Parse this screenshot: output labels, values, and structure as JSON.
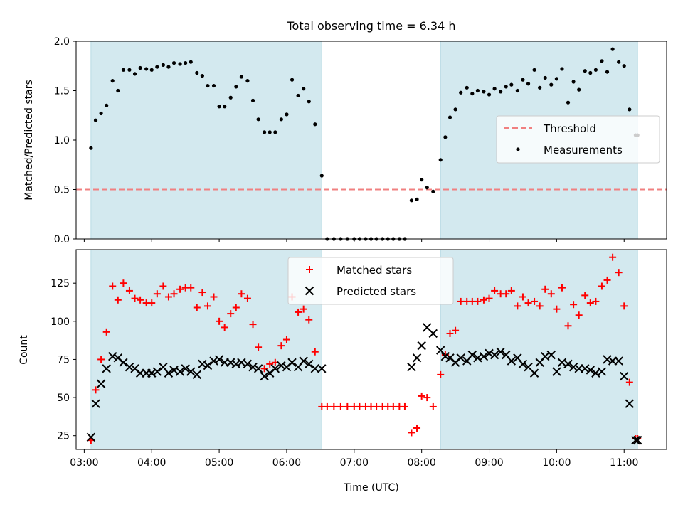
{
  "chart_data": [
    {
      "type": "scatter",
      "title": "Total observing time = 6.34 h",
      "ylabel": "Matched/Predicted stars",
      "xlabel": "",
      "xlim": [
        2.88,
        11.63
      ],
      "ylim": [
        0,
        2.0
      ],
      "yticks": [
        0.0,
        0.5,
        1.0,
        1.5,
        2.0
      ],
      "ytick_labels": [
        "0.0",
        "0.5",
        "1.0",
        "1.5",
        "2.0"
      ],
      "shaded_intervals": [
        [
          3.1,
          6.52
        ],
        [
          8.28,
          11.2
        ]
      ],
      "shade_color": "#d3e9ef",
      "threshold": {
        "name": "Threshold",
        "value": 0.5,
        "color": "#f08080",
        "style": "dashed"
      },
      "legend": {
        "placement": "center-right",
        "entries": [
          "Threshold",
          "Measurements"
        ]
      },
      "series": [
        {
          "name": "Measurements",
          "marker": "dot",
          "color": "#000000",
          "x": [
            3.1,
            3.17,
            3.25,
            3.33,
            3.42,
            3.5,
            3.58,
            3.67,
            3.75,
            3.83,
            3.92,
            4.0,
            4.08,
            4.17,
            4.25,
            4.33,
            4.42,
            4.5,
            4.58,
            4.67,
            4.75,
            4.83,
            4.92,
            5.0,
            5.08,
            5.17,
            5.25,
            5.33,
            5.42,
            5.5,
            5.58,
            5.67,
            5.75,
            5.83,
            5.92,
            6.0,
            6.08,
            6.17,
            6.25,
            6.33,
            6.42,
            6.52,
            6.6,
            6.7,
            6.8,
            6.9,
            7.0,
            7.08,
            7.17,
            7.25,
            7.33,
            7.42,
            7.5,
            7.58,
            7.67,
            7.75,
            7.85,
            7.93,
            8.0,
            8.08,
            8.17,
            8.28,
            8.35,
            8.42,
            8.5,
            8.58,
            8.67,
            8.75,
            8.83,
            8.92,
            9.0,
            9.08,
            9.17,
            9.25,
            9.33,
            9.42,
            9.5,
            9.58,
            9.67,
            9.75,
            9.83,
            9.92,
            10.0,
            10.08,
            10.17,
            10.25,
            10.33,
            10.42,
            10.5,
            10.58,
            10.67,
            10.75,
            10.83,
            10.92,
            11.0,
            11.08,
            11.17,
            11.2
          ],
          "y": [
            0.92,
            1.2,
            1.27,
            1.35,
            1.6,
            1.5,
            1.71,
            1.71,
            1.67,
            1.73,
            1.72,
            1.71,
            1.74,
            1.76,
            1.74,
            1.78,
            1.77,
            1.78,
            1.79,
            1.68,
            1.65,
            1.55,
            1.55,
            1.34,
            1.34,
            1.43,
            1.54,
            1.64,
            1.6,
            1.4,
            1.21,
            1.08,
            1.08,
            1.08,
            1.21,
            1.26,
            1.61,
            1.45,
            1.52,
            1.39,
            1.16,
            0.64,
            0.0,
            0.0,
            0.0,
            0.0,
            0.0,
            0.0,
            0.0,
            0.0,
            0.0,
            0.0,
            0.0,
            0.0,
            0.0,
            0.0,
            0.39,
            0.4,
            0.6,
            0.52,
            0.48,
            0.8,
            1.03,
            1.23,
            1.31,
            1.48,
            1.53,
            1.47,
            1.5,
            1.49,
            1.46,
            1.52,
            1.49,
            1.54,
            1.56,
            1.5,
            1.61,
            1.57,
            1.71,
            1.53,
            1.63,
            1.56,
            1.62,
            1.72,
            1.38,
            1.59,
            1.51,
            1.7,
            1.68,
            1.71,
            1.8,
            1.69,
            1.92,
            1.79,
            1.75,
            1.31,
            1.05,
            1.05
          ]
        }
      ]
    },
    {
      "type": "scatter",
      "title": "",
      "ylabel": "Count",
      "xlabel": "Time (UTC)",
      "xlim": [
        2.88,
        11.63
      ],
      "ylim": [
        16,
        147
      ],
      "yticks": [
        25,
        50,
        75,
        100,
        125
      ],
      "ytick_labels": [
        "25",
        "50",
        "75",
        "100",
        "125"
      ],
      "xticks": [
        3,
        4,
        5,
        6,
        7,
        8,
        9,
        10,
        11
      ],
      "xtick_labels": [
        "03:00",
        "04:00",
        "05:00",
        "06:00",
        "07:00",
        "08:00",
        "09:00",
        "10:00",
        "11:00"
      ],
      "shaded_intervals": [
        [
          3.1,
          6.52
        ],
        [
          8.28,
          11.2
        ]
      ],
      "shade_color": "#d3e9ef",
      "legend": {
        "placement": "top-center",
        "entries": [
          "Matched stars",
          "Predicted stars"
        ]
      },
      "series": [
        {
          "name": "Matched stars",
          "marker": "plus",
          "color": "#ff0000",
          "x": [
            3.1,
            3.17,
            3.25,
            3.33,
            3.42,
            3.5,
            3.58,
            3.67,
            3.75,
            3.83,
            3.92,
            4.0,
            4.08,
            4.17,
            4.25,
            4.33,
            4.42,
            4.5,
            4.58,
            4.67,
            4.75,
            4.83,
            4.92,
            5.0,
            5.08,
            5.17,
            5.25,
            5.33,
            5.42,
            5.5,
            5.58,
            5.67,
            5.75,
            5.83,
            5.92,
            6.0,
            6.08,
            6.17,
            6.25,
            6.33,
            6.42,
            6.52,
            6.6,
            6.7,
            6.8,
            6.9,
            7.0,
            7.08,
            7.17,
            7.25,
            7.33,
            7.42,
            7.5,
            7.58,
            7.67,
            7.75,
            7.85,
            7.93,
            8.0,
            8.08,
            8.17,
            8.28,
            8.35,
            8.42,
            8.5,
            8.58,
            8.67,
            8.75,
            8.83,
            8.92,
            9.0,
            9.08,
            9.17,
            9.25,
            9.33,
            9.42,
            9.5,
            9.58,
            9.67,
            9.75,
            9.83,
            9.92,
            10.0,
            10.08,
            10.17,
            10.25,
            10.33,
            10.42,
            10.5,
            10.58,
            10.67,
            10.75,
            10.83,
            10.92,
            11.0,
            11.08,
            11.17,
            11.2
          ],
          "y": [
            22,
            55,
            75,
            93,
            123,
            114,
            125,
            120,
            115,
            114,
            112,
            112,
            118,
            123,
            116,
            118,
            121,
            122,
            122,
            109,
            119,
            110,
            116,
            100,
            96,
            105,
            109,
            118,
            115,
            98,
            83,
            69,
            72,
            73,
            84,
            88,
            116,
            106,
            108,
            101,
            80,
            44,
            44,
            44,
            44,
            44,
            44,
            44,
            44,
            44,
            44,
            44,
            44,
            44,
            44,
            44,
            27,
            30,
            51,
            50,
            44,
            65,
            78,
            92,
            94,
            113,
            113,
            113,
            113,
            114,
            115,
            120,
            118,
            118,
            120,
            110,
            116,
            112,
            113,
            110,
            121,
            118,
            108,
            122,
            97,
            111,
            104,
            117,
            112,
            113,
            123,
            127,
            142,
            132,
            110,
            60,
            23,
            23
          ]
        },
        {
          "name": "Predicted stars",
          "marker": "x",
          "color": "#000000",
          "x": [
            3.1,
            3.17,
            3.25,
            3.33,
            3.42,
            3.5,
            3.58,
            3.67,
            3.75,
            3.83,
            3.92,
            4.0,
            4.08,
            4.17,
            4.25,
            4.33,
            4.42,
            4.5,
            4.58,
            4.67,
            4.75,
            4.83,
            4.92,
            5.0,
            5.08,
            5.17,
            5.25,
            5.33,
            5.42,
            5.5,
            5.58,
            5.67,
            5.75,
            5.83,
            5.92,
            6.0,
            6.08,
            6.17,
            6.25,
            6.33,
            6.42,
            6.52,
            7.85,
            7.93,
            8.0,
            8.08,
            8.17,
            8.28,
            8.35,
            8.42,
            8.5,
            8.58,
            8.67,
            8.75,
            8.83,
            8.92,
            9.0,
            9.08,
            9.17,
            9.25,
            9.33,
            9.42,
            9.5,
            9.58,
            9.67,
            9.75,
            9.83,
            9.92,
            10.0,
            10.08,
            10.17,
            10.25,
            10.33,
            10.42,
            10.5,
            10.58,
            10.67,
            10.75,
            10.83,
            10.92,
            11.0,
            11.08,
            11.17,
            11.2
          ],
          "y": [
            24,
            46,
            59,
            69,
            77,
            76,
            73,
            70,
            69,
            66,
            66,
            66,
            67,
            70,
            66,
            68,
            67,
            69,
            67,
            65,
            72,
            71,
            74,
            75,
            73,
            73,
            72,
            73,
            72,
            70,
            69,
            64,
            66,
            69,
            71,
            70,
            73,
            70,
            74,
            72,
            69,
            69,
            70,
            76,
            84,
            96,
            92,
            81,
            77,
            76,
            73,
            76,
            74,
            78,
            76,
            77,
            79,
            78,
            80,
            78,
            74,
            76,
            72,
            70,
            66,
            73,
            77,
            78,
            67,
            73,
            72,
            70,
            69,
            69,
            68,
            66,
            67,
            75,
            74,
            74,
            64,
            46,
            22,
            22
          ]
        }
      ]
    }
  ]
}
